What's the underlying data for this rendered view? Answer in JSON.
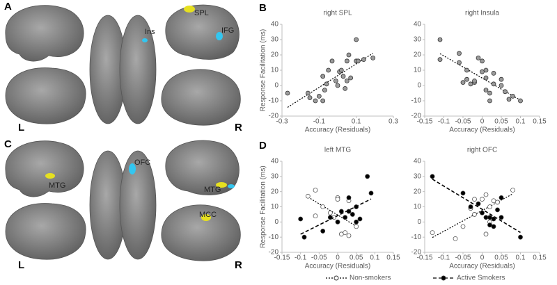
{
  "panel_letters": [
    "A",
    "B",
    "C",
    "D"
  ],
  "brain_labels": [
    "SPL",
    "Ins",
    "IFG",
    "L",
    "R",
    "OFC",
    "MTG",
    "MTG",
    "MCC",
    "L",
    "R"
  ],
  "chart_data": [
    {
      "type": "scatter",
      "title": "right SPL",
      "xlabel": "Accuracy (Residuals)",
      "ylabel": "Response Facilitation (ms)",
      "xlim": [
        -0.3,
        0.3
      ],
      "xticks": [
        -0.3,
        -0.1,
        0.1,
        0.3
      ],
      "ylim": [
        -20,
        40
      ],
      "yticks": [
        -20,
        -10,
        0,
        10,
        20,
        30,
        40
      ],
      "series": [
        {
          "fill": "#9a9a9a",
          "line_style": "dotted",
          "x": [
            -0.27,
            -0.16,
            -0.15,
            -0.12,
            -0.1,
            -0.08,
            -0.07,
            -0.06,
            -0.08,
            -0.05,
            -0.03,
            -0.01,
            0,
            0.01,
            0.02,
            0.03,
            0.05,
            0.05,
            0.06,
            0.07,
            0.1,
            0.1,
            0.11,
            0.14,
            0.19,
            0.04
          ],
          "y": [
            -5,
            -5,
            -8,
            -10,
            -7,
            -10,
            -3,
            1,
            6,
            10,
            16,
            3,
            0,
            9,
            10,
            6,
            3,
            16,
            20,
            5,
            30,
            16,
            16,
            17,
            18,
            -2
          ]
        }
      ]
    },
    {
      "type": "scatter",
      "title": "right Insula",
      "xlabel": "Accuracy (Residuals)",
      "xlim": [
        -0.15,
        0.15
      ],
      "xticks": [
        -0.15,
        -0.1,
        -0.05,
        0,
        0.05,
        0.1,
        0.15
      ],
      "ylim": [
        -20,
        40
      ],
      "yticks": [
        -20,
        -10,
        0,
        10,
        20,
        30,
        40
      ],
      "series": [
        {
          "fill": "#9a9a9a",
          "line_style": "dotted",
          "x": [
            -0.11,
            -0.11,
            -0.06,
            -0.06,
            -0.05,
            -0.04,
            -0.04,
            -0.03,
            -0.02,
            -0.02,
            -0.01,
            0,
            0,
            0.01,
            0.01,
            0.02,
            0.02,
            0.03,
            0.01,
            0.05,
            0.05,
            0.06,
            0.07,
            0.08,
            0.1,
            0.03
          ],
          "y": [
            30,
            17,
            21,
            15,
            2,
            4,
            10,
            1,
            2,
            3,
            18,
            16,
            9,
            10,
            -3,
            -5,
            -10,
            1,
            5,
            0,
            4,
            -4,
            -9,
            -7,
            -10,
            8
          ]
        }
      ]
    },
    {
      "type": "scatter",
      "title": "left MTG",
      "xlabel": "Accuracy (Residuals)",
      "ylabel": "Response Facilitation (ms)",
      "xlim": [
        -0.15,
        0.15
      ],
      "xticks": [
        -0.15,
        -0.1,
        -0.05,
        0,
        0.05,
        0.1,
        0.15
      ],
      "ylim": [
        -20,
        40
      ],
      "yticks": [
        -20,
        -10,
        0,
        10,
        20,
        30,
        40
      ],
      "series": [
        {
          "name": "Non-smokers",
          "fill": "none",
          "line_style": "dotted",
          "x": [
            -0.08,
            -0.06,
            -0.06,
            -0.04,
            -0.02,
            -0.01,
            0,
            0,
            0.01,
            0.02,
            0.03,
            0.05,
            0.03
          ],
          "y": [
            17,
            21,
            4,
            10,
            6,
            3,
            16,
            15,
            -8,
            -7,
            -9,
            -3,
            14
          ]
        },
        {
          "name": "Active Smokers",
          "fill": "#000000",
          "line_style": "dashed",
          "x": [
            -0.1,
            -0.09,
            -0.04,
            -0.02,
            0,
            0.01,
            0.02,
            0.03,
            0.03,
            0.04,
            0.05,
            0.06,
            0.08,
            0.09,
            0.05
          ],
          "y": [
            2,
            -10,
            -6,
            3,
            0,
            7,
            3,
            16,
            7,
            5,
            10,
            2,
            30,
            19,
            0
          ]
        }
      ]
    },
    {
      "type": "scatter",
      "title": "right OFC",
      "xlabel": "Accuracy (Residuals)",
      "xlim": [
        -0.15,
        0.15
      ],
      "xticks": [
        -0.15,
        -0.1,
        -0.05,
        0,
        0.05,
        0.1,
        0.15
      ],
      "ylim": [
        -20,
        40
      ],
      "yticks": [
        -20,
        -10,
        0,
        10,
        20,
        30,
        40
      ],
      "series": [
        {
          "fill": "none",
          "line_style": "dotted",
          "x": [
            -0.13,
            -0.07,
            -0.05,
            -0.03,
            -0.02,
            -0.02,
            0,
            0.01,
            0.02,
            0.03,
            0.02,
            0.01,
            0.08,
            0.04
          ],
          "y": [
            -7,
            -11,
            -3,
            9,
            15,
            5,
            15,
            18,
            10,
            14,
            0,
            -8,
            21,
            13
          ]
        },
        {
          "fill": "#000000",
          "line_style": "dashed",
          "x": [
            -0.13,
            -0.05,
            -0.03,
            -0.01,
            0,
            0.01,
            0.02,
            0.02,
            0.03,
            0.04,
            0.05,
            0.05,
            0.03,
            0.1
          ],
          "y": [
            30,
            19,
            10,
            12,
            6,
            3,
            3,
            -2,
            2,
            8,
            3,
            16,
            -3,
            -10
          ]
        }
      ]
    }
  ]
}
